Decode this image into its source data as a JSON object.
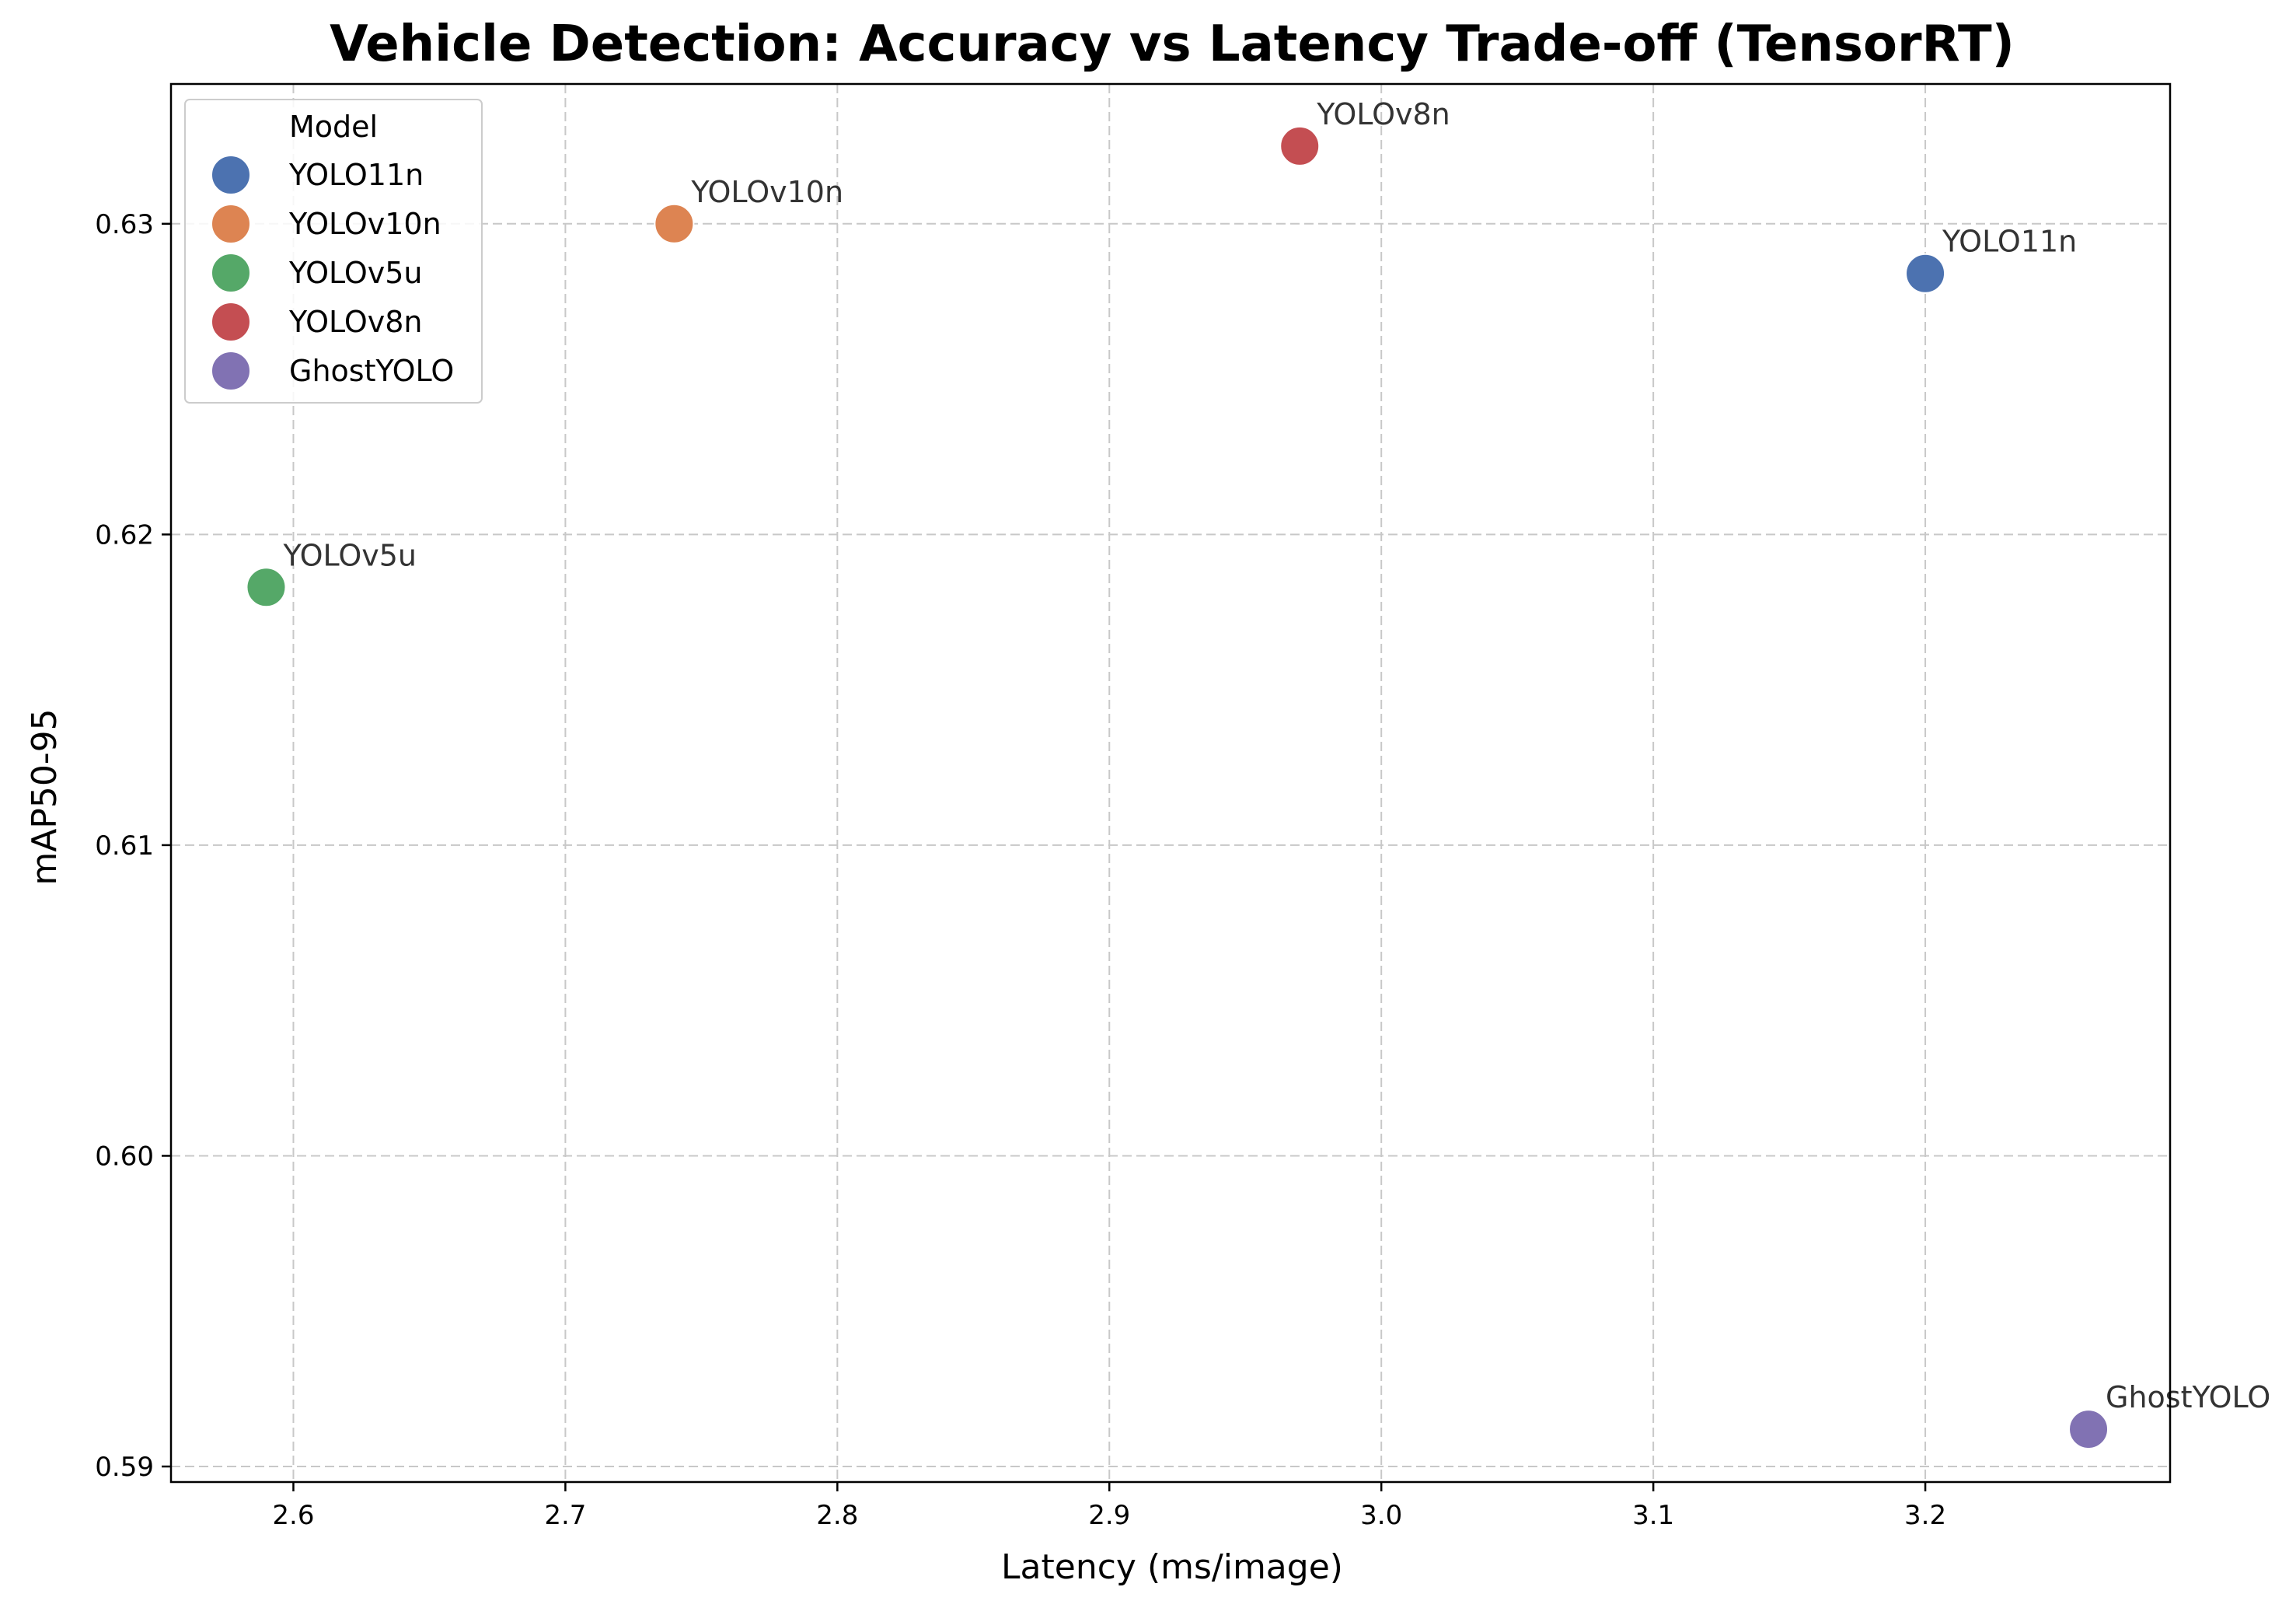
{
  "chart_data": {
    "type": "scatter",
    "title": "Vehicle Detection: Accuracy vs Latency Trade-off (TensorRT)",
    "xlabel": "Latency (ms/image)",
    "ylabel": "mAP50-95",
    "xlim": [
      2.555,
      2.29
    ],
    "ylim": [
      0.5895,
      0.6345
    ],
    "xticks": [
      2.6,
      2.7,
      2.8,
      2.9,
      3.0,
      3.1,
      3.2
    ],
    "xtick_labels": [
      "2.6",
      "2.7",
      "2.8",
      "2.9",
      "3.0",
      "3.1",
      "3.2"
    ],
    "yticks": [
      0.59,
      0.6,
      0.61,
      0.62,
      0.63
    ],
    "ytick_labels": [
      "0.59",
      "0.60",
      "0.61",
      "0.62",
      "0.63"
    ],
    "grid": true,
    "legend": {
      "title": "Model",
      "position": "top-left"
    },
    "series": [
      {
        "name": "YOLO11n",
        "x": 3.2,
        "y": 0.6284,
        "color": "#4c72b0"
      },
      {
        "name": "YOLOv10n",
        "x": 2.74,
        "y": 0.63,
        "color": "#dd8452"
      },
      {
        "name": "YOLOv5u",
        "x": 2.59,
        "y": 0.6183,
        "color": "#55a868"
      },
      {
        "name": "YOLOv8n",
        "x": 2.97,
        "y": 0.6325,
        "color": "#c44e52"
      },
      {
        "name": "GhostYOLO",
        "x": 3.26,
        "y": 0.5912,
        "color": "#8172b3"
      }
    ]
  }
}
